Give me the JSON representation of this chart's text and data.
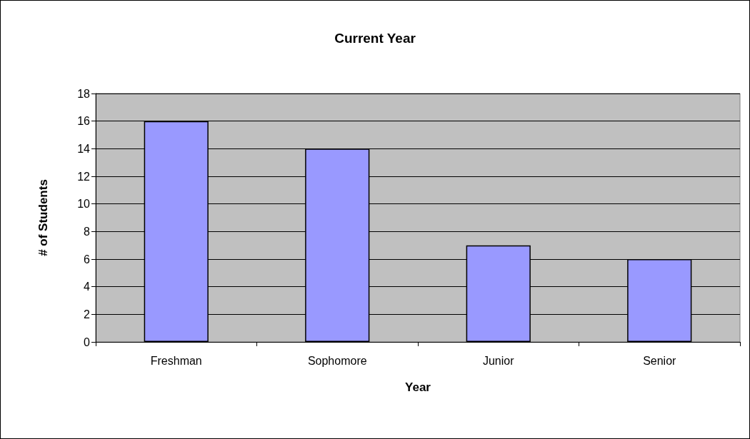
{
  "chart_data": {
    "type": "bar",
    "title": "Current Year",
    "xlabel": "Year",
    "ylabel": "# of Students",
    "categories": [
      "Freshman",
      "Sophomore",
      "Junior",
      "Senior"
    ],
    "values": [
      16,
      14,
      7,
      6
    ],
    "color": "#9999ff",
    "ylim": [
      0,
      18
    ],
    "yticks": [
      0,
      2,
      4,
      6,
      8,
      10,
      12,
      14,
      16,
      18
    ],
    "grid": "y"
  }
}
